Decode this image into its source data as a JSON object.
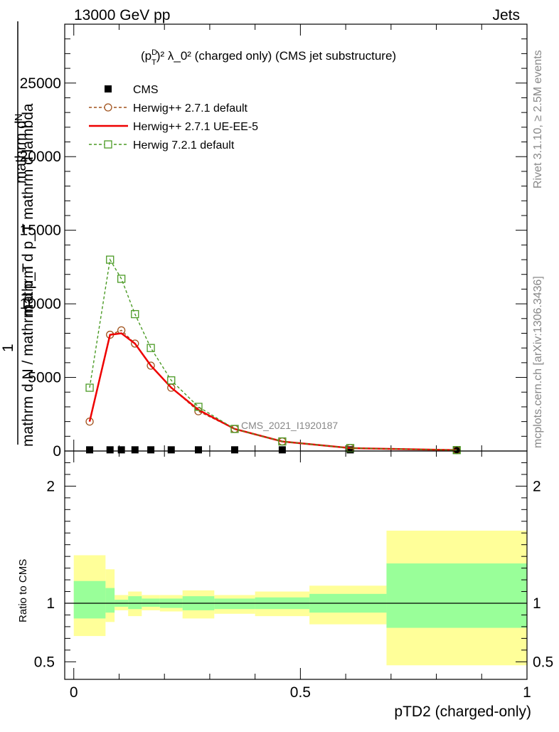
{
  "header": {
    "left": "13000 GeV pp",
    "right": "Jets"
  },
  "sidebar": {
    "rivet": "Rivet 3.1.10, ≥ 2.5M events",
    "mcplots": "mcplots.cern.ch [arXiv:1306.3436]"
  },
  "chart_data": [
    {
      "type": "line",
      "panel": "main",
      "title_main": "(p",
      "title_sub": "T",
      "title_sup": "D",
      "title_rest": ")² λ_0² (charged only) (CMS jet substructure)",
      "ylabel_top": "mathrm dᴺ",
      "ylabel_mid": "mathrm d p_T mathrm d lambda",
      "ylabel_num": "1",
      "ylabel_den": "mathrm d N / mathrm d p_T",
      "watermark": "CMS_2021_I1920187",
      "xlim": [
        -0.02,
        1.0
      ],
      "ylim": [
        0,
        29000
      ],
      "yticks": [
        {
          "v": 0,
          "label": "0"
        },
        {
          "v": 5000,
          "label": "5000"
        },
        {
          "v": 10000,
          "label": "10000"
        },
        {
          "v": 15000,
          "label": "15000"
        },
        {
          "v": 20000,
          "label": "20000"
        },
        {
          "v": 25000,
          "label": "25000"
        }
      ],
      "legend": {
        "position": "top-left",
        "entries": [
          "CMS",
          "Herwig++ 2.7.1 default",
          "Herwig++ 2.7.1 UE-EE-5",
          "Herwig 7.2.1 default"
        ]
      },
      "series": [
        {
          "name": "CMS",
          "style": "square-filled",
          "color": "#000000",
          "x": [
            0.035,
            0.08,
            0.105,
            0.135,
            0.17,
            0.215,
            0.275,
            0.355,
            0.46,
            0.61,
            0.845
          ],
          "y": [
            80,
            80,
            80,
            80,
            80,
            80,
            80,
            80,
            80,
            80,
            80
          ]
        },
        {
          "name": "Herwig++ 2.7.1 default",
          "style": "dashed-circle",
          "color": "#a0521c",
          "x": [
            0.035,
            0.08,
            0.105,
            0.135,
            0.17,
            0.215,
            0.275,
            0.355,
            0.46,
            0.61,
            0.845
          ],
          "y": [
            2000,
            7900,
            8200,
            7300,
            5800,
            4300,
            2700,
            1500,
            650,
            200,
            60
          ]
        },
        {
          "name": "Herwig++ 2.7.1 UE-EE-5",
          "style": "solid",
          "color": "#ee0000",
          "x": [
            0.035,
            0.08,
            0.105,
            0.135,
            0.17,
            0.215,
            0.275,
            0.355,
            0.46,
            0.61,
            0.845
          ],
          "y": [
            2000,
            7900,
            8000,
            7300,
            5800,
            4300,
            2800,
            1500,
            650,
            200,
            60
          ]
        },
        {
          "name": "Herwig 7.2.1 default",
          "style": "dashed-square-open",
          "color": "#4a9a24",
          "x": [
            0.035,
            0.08,
            0.105,
            0.135,
            0.17,
            0.215,
            0.275,
            0.355,
            0.46,
            0.61,
            0.845
          ],
          "y": [
            4300,
            13000,
            11700,
            9300,
            7000,
            4800,
            3000,
            1500,
            650,
            200,
            60
          ]
        }
      ]
    },
    {
      "type": "area",
      "panel": "ratio",
      "ylabel": "Ratio to CMS",
      "xlabel": "pTD2 (charged-only)",
      "xlim": [
        -0.02,
        1.0
      ],
      "ylim": [
        0.35,
        2.3
      ],
      "yticks": [
        {
          "v": 0.5,
          "label": "0.5"
        },
        {
          "v": 1,
          "label": "1"
        },
        {
          "v": 2,
          "label": "2"
        }
      ],
      "xticks": [
        {
          "v": 0,
          "label": "0"
        },
        {
          "v": 0.5,
          "label": "0.5"
        },
        {
          "v": 1,
          "label": "1"
        }
      ],
      "bands": {
        "edges": [
          0.0,
          0.07,
          0.09,
          0.12,
          0.15,
          0.19,
          0.24,
          0.31,
          0.4,
          0.52,
          0.69,
          1.0
        ],
        "yellow_lo": [
          0.72,
          0.84,
          0.94,
          0.89,
          0.94,
          0.93,
          0.87,
          0.91,
          0.89,
          0.82,
          0.47
        ],
        "yellow_hi": [
          1.41,
          1.29,
          1.07,
          1.1,
          1.07,
          1.07,
          1.11,
          1.07,
          1.1,
          1.15,
          1.62
        ],
        "green_lo": [
          0.87,
          0.92,
          0.97,
          0.95,
          0.97,
          0.96,
          0.94,
          0.95,
          0.95,
          0.92,
          0.79
        ],
        "green_hi": [
          1.19,
          1.13,
          1.03,
          1.06,
          1.04,
          1.04,
          1.06,
          1.04,
          1.05,
          1.08,
          1.34
        ],
        "colors": {
          "yellow": "#ffff99",
          "green": "#99ff99"
        }
      }
    }
  ]
}
